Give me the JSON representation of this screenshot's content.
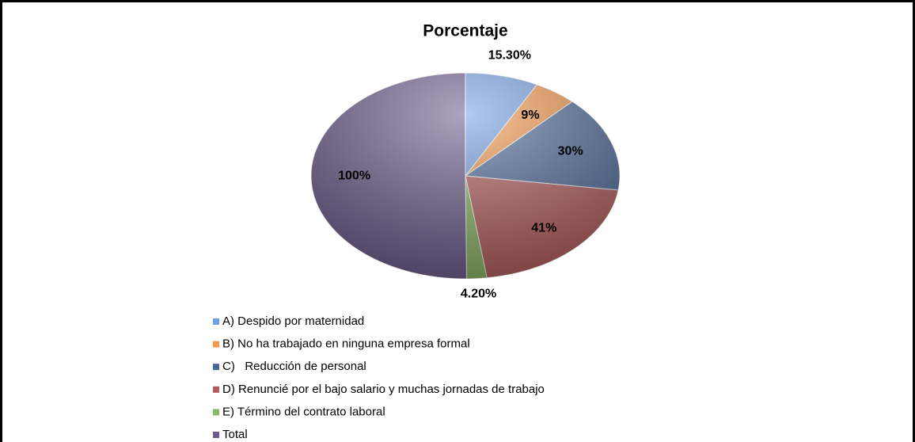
{
  "chart_data": {
    "type": "pie",
    "title": "Porcentaje",
    "categories": [
      "A) Despido por maternidad",
      "B) No ha trabajado en ninguna empresa formal",
      "C)   Reducción de personal",
      "D) Renuncié por el bajo salario y muchas jornadas de trabajo",
      "E) Término del contrato laboral",
      "Total"
    ],
    "values": [
      15.3,
      9,
      30,
      41,
      4.2,
      100
    ],
    "value_labels": [
      "15.30%",
      "9%",
      "30%",
      "41%",
      "4.20%",
      "100%"
    ],
    "colors": [
      "#6f9ee6",
      "#f79646",
      "#4a679a",
      "#b85a5a",
      "#8db863",
      "#6b5a8c"
    ]
  }
}
